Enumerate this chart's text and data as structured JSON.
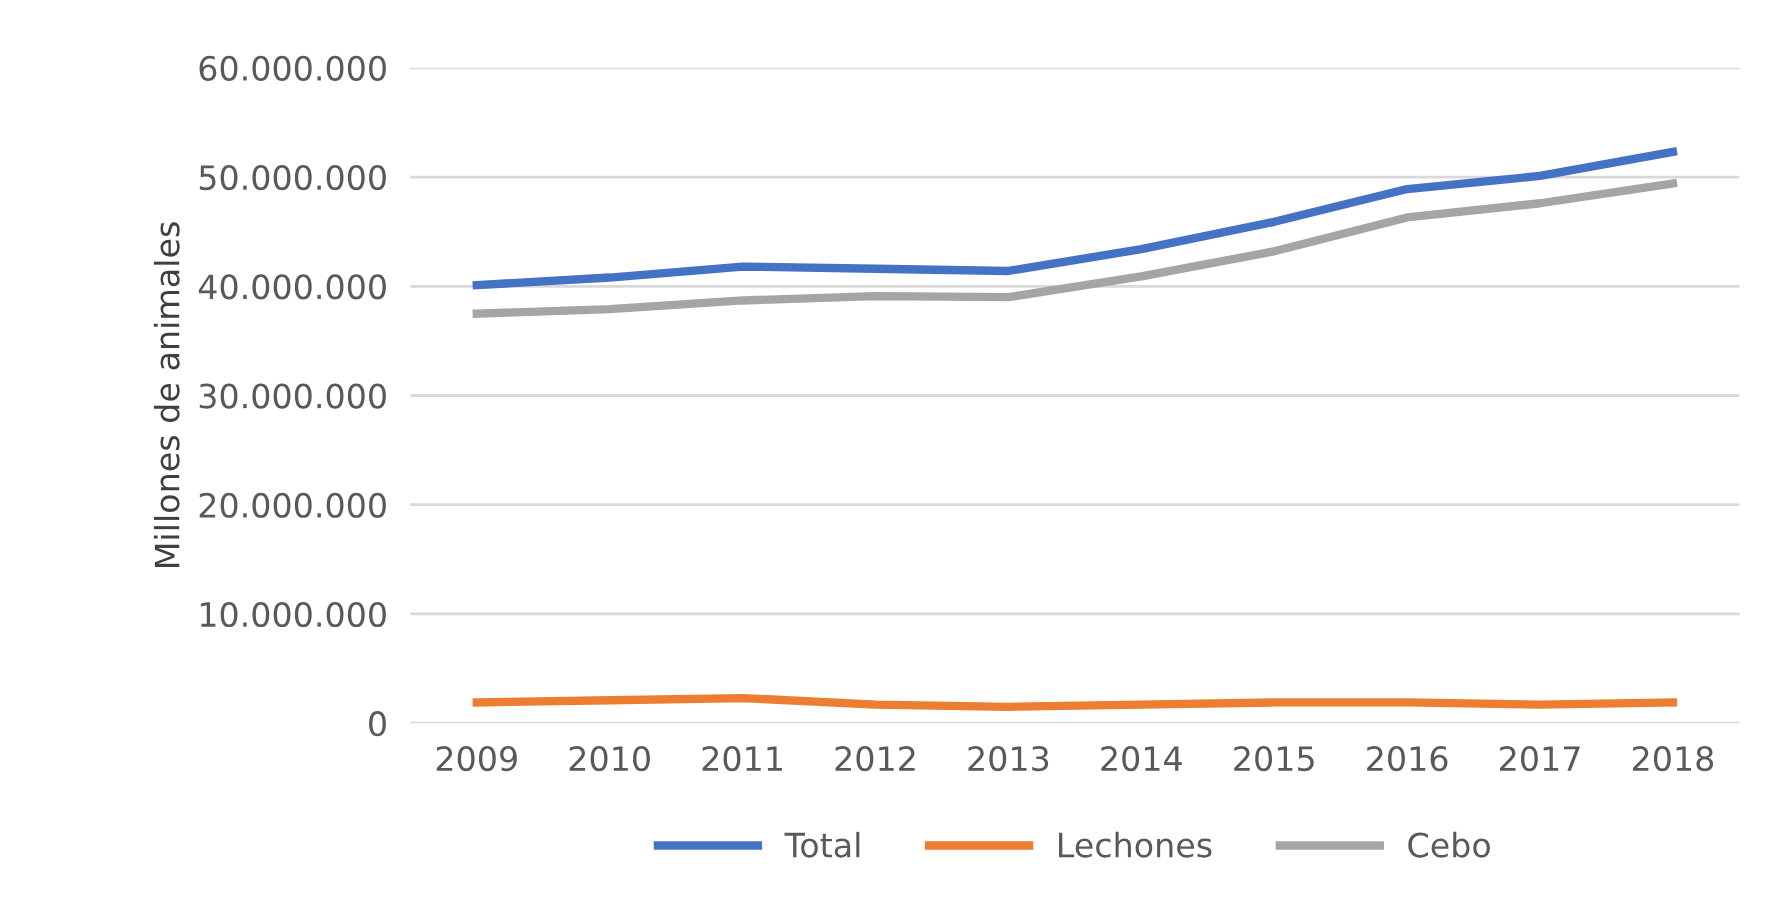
{
  "chart_data": {
    "type": "line",
    "ylabel": "Millones de animales",
    "categories": [
      "2009",
      "2010",
      "2011",
      "2012",
      "2013",
      "2014",
      "2015",
      "2016",
      "2017",
      "2018"
    ],
    "series": [
      {
        "name": "Total",
        "color": "#4472c4",
        "values": [
          40100000,
          40800000,
          41800000,
          41600000,
          41400000,
          43400000,
          45900000,
          48900000,
          50100000,
          52300000
        ]
      },
      {
        "name": "Lechones",
        "color": "#ed7d31",
        "values": [
          1900000,
          2100000,
          2300000,
          1700000,
          1500000,
          1700000,
          1900000,
          1900000,
          1700000,
          1900000
        ]
      },
      {
        "name": "Cebo",
        "color": "#a5a5a5",
        "values": [
          37500000,
          37900000,
          38700000,
          39100000,
          39000000,
          40900000,
          43200000,
          46300000,
          47600000,
          49400000
        ]
      }
    ],
    "ylim": [
      0,
      60000000
    ],
    "yticks": [
      {
        "value": 0,
        "label": "0"
      },
      {
        "value": 10000000,
        "label": "10.000.000"
      },
      {
        "value": 20000000,
        "label": "20.000.000"
      },
      {
        "value": 30000000,
        "label": "30.000.000"
      },
      {
        "value": 40000000,
        "label": "40.000.000"
      },
      {
        "value": 50000000,
        "label": "50.000.000"
      },
      {
        "value": 60000000,
        "label": "60.000.000"
      }
    ],
    "grid": "y",
    "legend": "bottom",
    "marker": "none",
    "line_style": "solid"
  }
}
